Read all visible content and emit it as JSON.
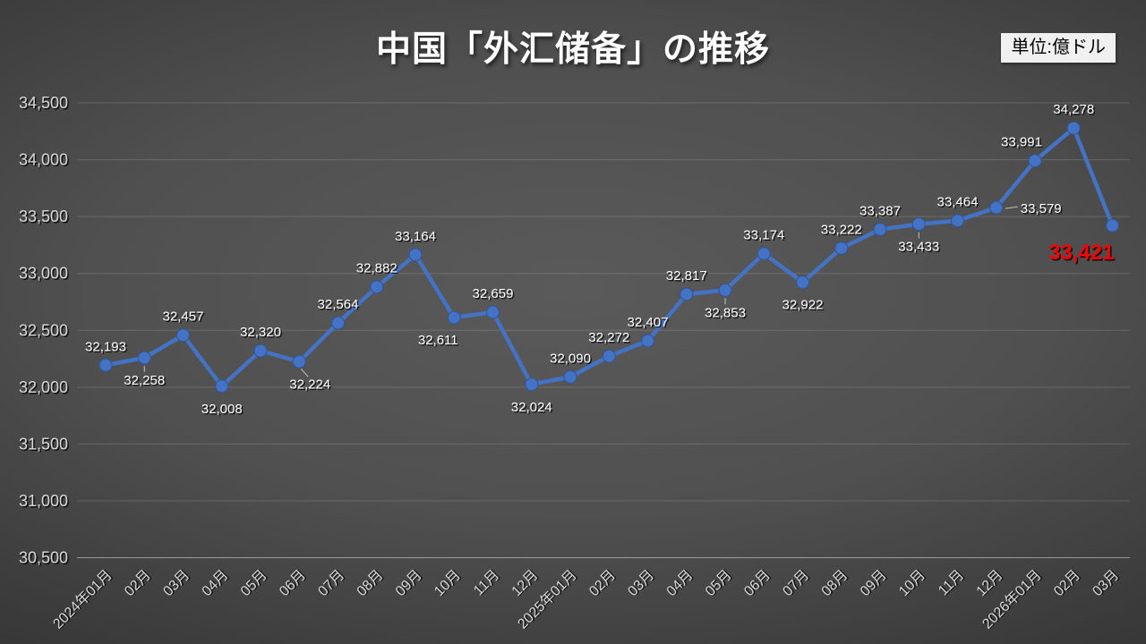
{
  "title": "中国「外汇储备」の推移",
  "unit_label": "単位:億ドル",
  "colors": {
    "line": "#4472C4",
    "marker_edge": "#2F5597",
    "data_label": "#FFFFFF",
    "highlight_label": "#FF0000",
    "axis_label": "#D9D9D9",
    "gridline": "rgba(255,255,255,0.15)",
    "axis_line": "rgba(255,255,255,0.45)",
    "leader_line": "rgba(255,255,255,0.65)",
    "background_center": "#5A5A5A",
    "background_edge": "#262626",
    "unit_box_bg": "#F0F0F0",
    "unit_box_text": "#000000"
  },
  "chart_data": {
    "type": "line",
    "title": "中国「外汇储备」の推移",
    "unit": "億ドル",
    "categories": [
      "2024年01月",
      "02月",
      "03月",
      "04月",
      "05月",
      "06月",
      "07月",
      "08月",
      "09月",
      "10月",
      "11月",
      "12月",
      "2025年01月",
      "02月",
      "03月",
      "04月",
      "05月",
      "06月",
      "07月",
      "08月",
      "09月",
      "10月",
      "11月",
      "12月",
      "2026年01月",
      "02月",
      "03月"
    ],
    "values": [
      32193,
      32258,
      32457,
      32008,
      32320,
      32224,
      32564,
      32882,
      33164,
      32611,
      32659,
      32024,
      32090,
      32272,
      32407,
      32817,
      32853,
      33174,
      32922,
      33222,
      33387,
      33433,
      33464,
      33579,
      33991,
      34278,
      33421
    ],
    "data_labels": [
      "32,193",
      "32,258",
      "32,457",
      "32,008",
      "32,320",
      "32,224",
      "32,564",
      "32,882",
      "33,164",
      "32,611",
      "32,659",
      "32,024",
      "32,090",
      "32,272",
      "32,407",
      "32,817",
      "32,853",
      "33,174",
      "32,922",
      "33,222",
      "33,387",
      "33,433",
      "33,464",
      "33,579",
      "33,991",
      "34,278",
      "33,421"
    ],
    "label_positions": [
      "above",
      "below",
      "above",
      "below",
      "above",
      "below",
      "above",
      "above",
      "above",
      "below",
      "above",
      "below",
      "above",
      "above",
      "above",
      "above",
      "below",
      "above",
      "below",
      "above",
      "above",
      "below",
      "above",
      "right",
      "above",
      "above",
      "below"
    ],
    "leader_line_indices": [
      1,
      5,
      16,
      21,
      23
    ],
    "highlight": {
      "index": 26,
      "label": "33,421",
      "color": "#FF0000"
    },
    "ylim": [
      30500,
      34500
    ],
    "ytick_step": 500,
    "ytick_labels": [
      "30,500",
      "31,000",
      "31,500",
      "32,000",
      "32,500",
      "33,000",
      "33,500",
      "34,000",
      "34,500"
    ],
    "grid": true,
    "legend": "none",
    "xlabel": "",
    "ylabel": ""
  }
}
